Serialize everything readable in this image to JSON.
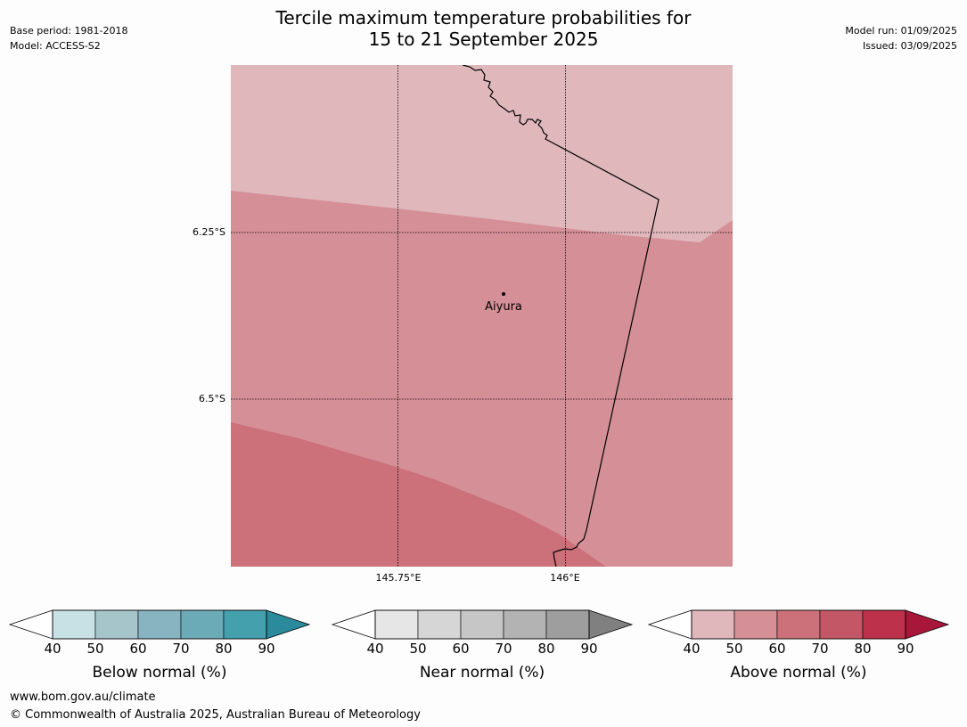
{
  "title_line1": "Tercile maximum temperature probabilities for",
  "title_line2": "15 to 21 September 2025",
  "base_period": "Base period: 1981-2018",
  "model": "Model: ACCESS-S2",
  "model_run": "Model run: 01/09/2025",
  "issued": "Issued: 03/09/2025",
  "map": {
    "town": "Aiyura",
    "lat_labels": [
      "6.25°S",
      "6.5°S"
    ],
    "lon_labels": [
      "145.75°E",
      "146°E"
    ]
  },
  "chart_data": {
    "type": "heatmap",
    "title": "Tercile maximum temperature probabilities for 15 to 21 September 2025",
    "map_region": {
      "lat_ticks": [
        -6.25,
        -6.5
      ],
      "lon_ticks": [
        145.75,
        146.0
      ],
      "shown_categories": [
        {
          "category": "Above normal",
          "range": "40-50"
        },
        {
          "category": "Above normal",
          "range": "50-60"
        },
        {
          "category": "Above normal",
          "range": "60-70"
        }
      ]
    },
    "colorbars": [
      {
        "label": "Below normal (%)",
        "ticks": [
          "40",
          "50",
          "60",
          "70",
          "80",
          "90"
        ],
        "colors": [
          "#c8e1e5",
          "#a6c5cb",
          "#88b4c2",
          "#6babb8",
          "#45a0ae",
          "#2b8a9b"
        ]
      },
      {
        "label": "Near normal (%)",
        "ticks": [
          "40",
          "50",
          "60",
          "70",
          "80",
          "90"
        ],
        "colors": [
          "#e6e6e6",
          "#d6d6d6",
          "#c6c6c6",
          "#b3b3b3",
          "#9e9e9e",
          "#808080"
        ]
      },
      {
        "label": "Above normal (%)",
        "ticks": [
          "40",
          "50",
          "60",
          "70",
          "80",
          "90"
        ],
        "colors": [
          "#e0b8bc",
          "#d58f97",
          "#cc7079",
          "#c45766",
          "#bd324a",
          "#a8173a"
        ]
      }
    ]
  },
  "footer_url": "www.bom.gov.au/climate",
  "footer_copyright": "© Commonwealth of Australia 2025, Australian Bureau of Meteorology"
}
